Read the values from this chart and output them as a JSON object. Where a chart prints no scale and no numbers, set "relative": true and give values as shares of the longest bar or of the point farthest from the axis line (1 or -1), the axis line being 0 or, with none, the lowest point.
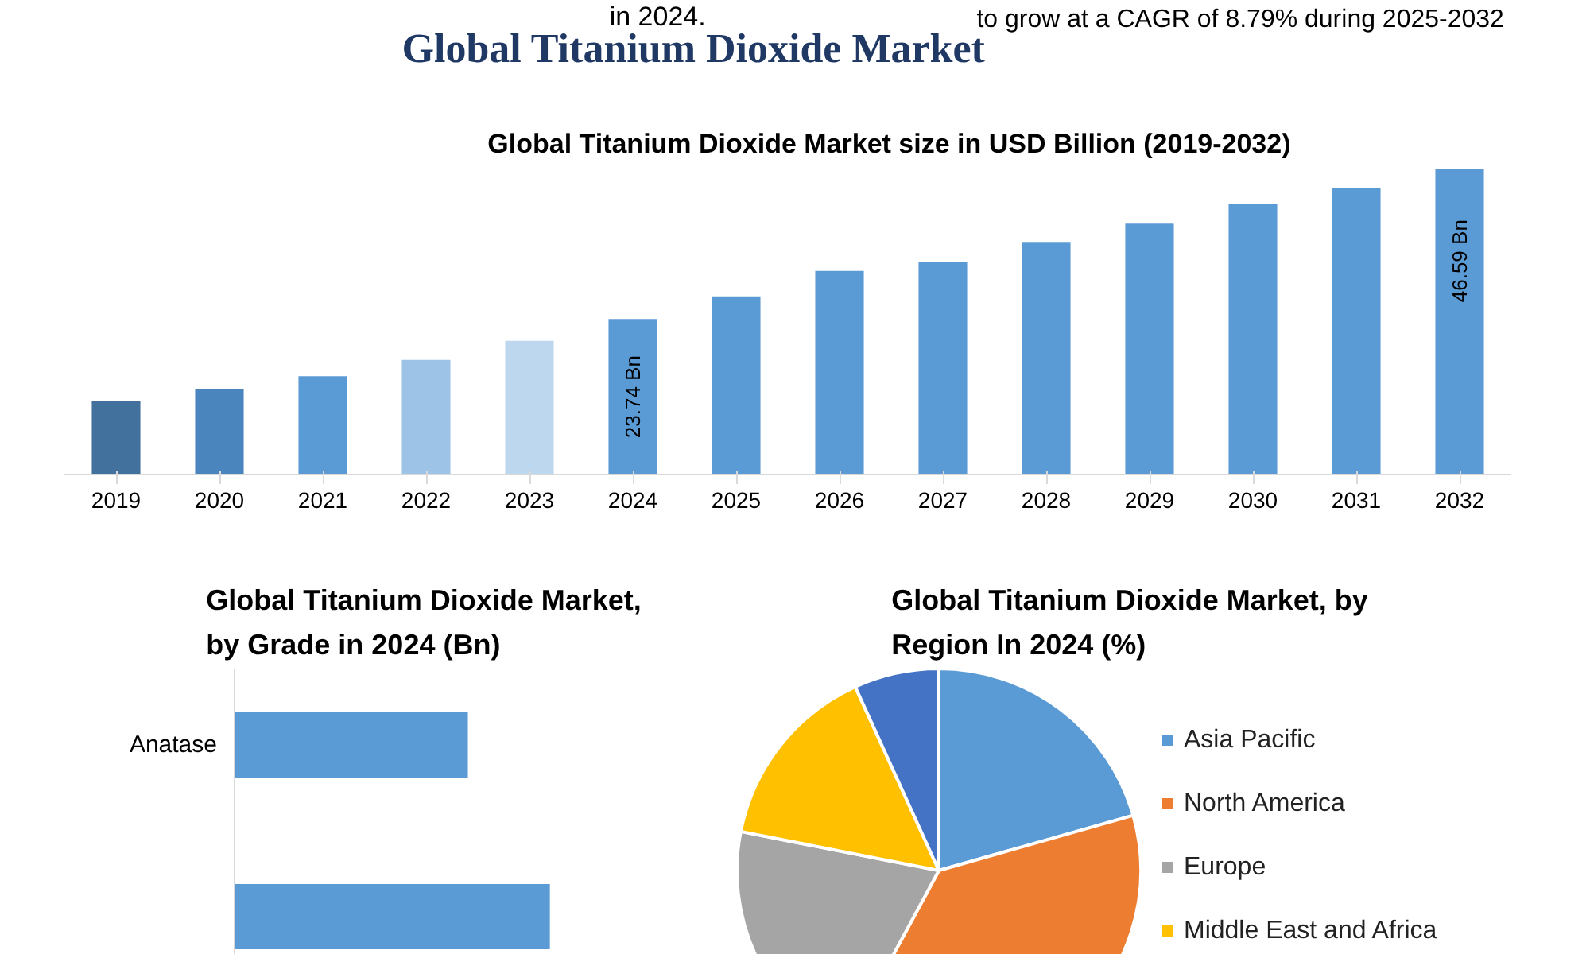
{
  "chart_data": [
    {
      "type": "bar",
      "title": "Global Titanium Dioxide Market",
      "subtitle": "Global Titanium Dioxide Market size in USD Billion (2019-2032)",
      "annotations": [
        "in 2024.",
        "to grow at a CAGR of 8.79% during 2025-2032"
      ],
      "categories": [
        "2019",
        "2020",
        "2021",
        "2022",
        "2023",
        "2024",
        "2025",
        "2026",
        "2027",
        "2028",
        "2029",
        "2030",
        "2031",
        "2032"
      ],
      "values": [
        11.2,
        13.1,
        15.0,
        17.5,
        20.4,
        23.74,
        27.2,
        31.1,
        32.5,
        35.4,
        38.3,
        41.3,
        43.7,
        46.59
      ],
      "value_labels": [
        null,
        null,
        null,
        null,
        null,
        "23.74 Bn",
        null,
        null,
        null,
        null,
        null,
        null,
        null,
        "46.59 Bn"
      ],
      "colors": [
        "#41719c",
        "#4a86bd",
        "#5b9bd5",
        "#9dc3e6",
        "#bdd7ee",
        "#5b9bd5",
        "#5b9bd5",
        "#5b9bd5",
        "#5b9bd5",
        "#5b9bd5",
        "#5b9bd5",
        "#5b9bd5",
        "#5b9bd5",
        "#5b9bd5"
      ]
    },
    {
      "type": "bar",
      "orientation": "horizontal",
      "title": "Global Titanium Dioxide Market, by Grade in 2024 (Bn)",
      "relative": true,
      "categories": [
        "Anatase",
        null
      ],
      "values": [
        0.74,
        1
      ],
      "color": "#5b9bd5"
    },
    {
      "type": "pie",
      "title": "Global Titanium Dioxide Market, by Region In 2024 (%)",
      "legend": "right",
      "categories": [
        "Asia Pacific",
        "North America",
        "Europe",
        "Middle East and Africa",
        null
      ],
      "values": [
        20.6,
        37.3,
        20.2,
        15.1,
        6.8
      ],
      "colors": [
        "#5b9bd5",
        "#ed7d31",
        "#a5a5a5",
        "#ffc000",
        "#4472c4"
      ]
    }
  ]
}
